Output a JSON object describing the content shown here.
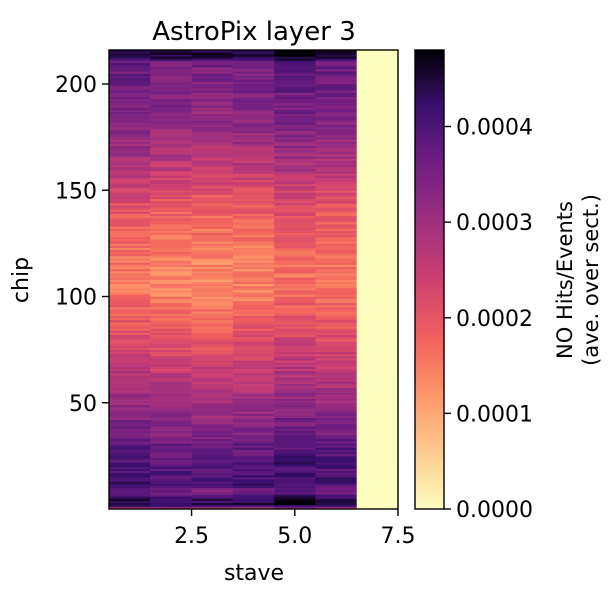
{
  "chart_data": {
    "type": "heatmap",
    "title": "AstroPix layer 3",
    "xlabel": "stave",
    "ylabel": "chip",
    "xlim": [
      0.5,
      7.5
    ],
    "ylim": [
      0,
      216
    ],
    "x_ticks": [
      "2.5",
      "5.0",
      "7.5"
    ],
    "x_tick_values": [
      2.5,
      5.0,
      7.5
    ],
    "y_ticks": [
      "50",
      "100",
      "150",
      "200"
    ],
    "y_tick_values": [
      50,
      100,
      150,
      200
    ],
    "colormap": "magma_r",
    "colorbar": {
      "label_line1": "NO Hits/Events",
      "label_line2": "(ave. over sect.)",
      "min": 0,
      "max": 0.00048,
      "ticks": [
        "0.0000",
        "0.0001",
        "0.0002",
        "0.0003",
        "0.0004"
      ],
      "tick_values": [
        0,
        0.0001,
        0.0002,
        0.0003,
        0.0004
      ]
    },
    "staves": [
      1,
      2,
      3,
      4,
      5,
      6,
      7
    ],
    "chips": 216,
    "stave_offsets": [
      0.0,
      -1.5e-05,
      -2e-05,
      -1e-05,
      1.2e-05,
      0.0,
      null
    ],
    "profile_by_chip_anchor": {
      "chip": [
        0,
        2,
        5,
        8,
        12,
        20,
        30,
        45,
        60,
        75,
        90,
        100,
        110,
        125,
        140,
        150,
        160,
        170,
        180,
        190,
        200,
        210,
        213,
        216
      ],
      "value": [
        0.00024,
        0.00046,
        0.00044,
        0.00036,
        0.00042,
        0.0004,
        0.00038,
        0.00033,
        0.00028,
        0.00023,
        0.00019,
        0.00016,
        0.00015,
        0.00017,
        0.0002,
        0.00023,
        0.00027,
        0.0003,
        0.00033,
        0.00035,
        0.00036,
        0.00037,
        0.00047,
        0.00047
      ]
    },
    "empty_stave": 7,
    "empty_stave_value": 0
  }
}
